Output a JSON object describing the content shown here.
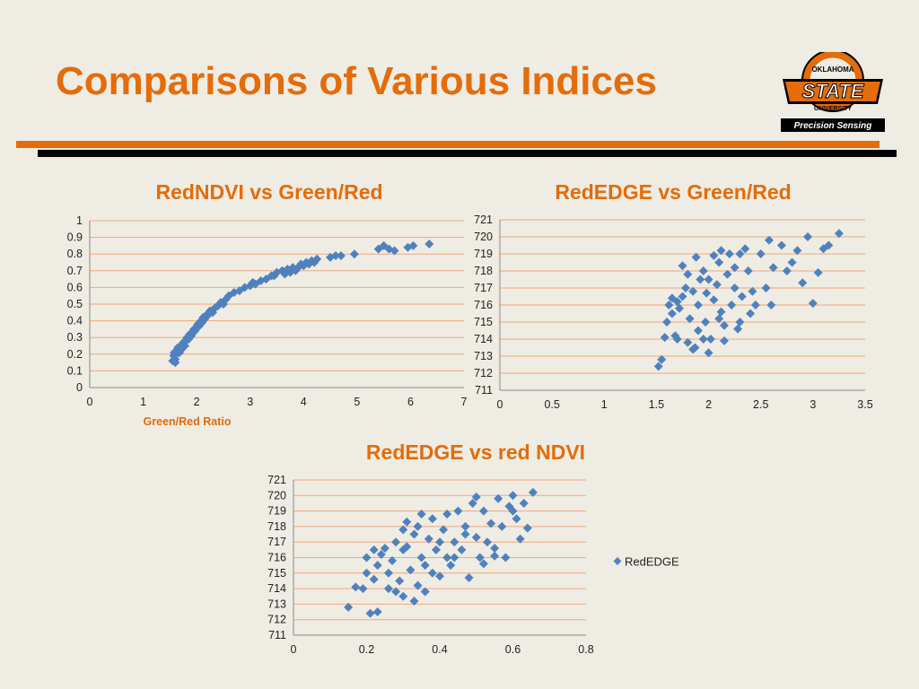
{
  "slide": {
    "title": "Comparisons of Various Indices",
    "accent_color": "#e46c0a",
    "marker_color": "#4f81bd"
  },
  "logo": {
    "top_text": "OKLAHOMA",
    "main_text": "STATE",
    "bottom_text": "UNIVERSITY",
    "tagline": "Precision Sensing",
    "icon": "osu-logo-icon"
  },
  "chart_data": [
    {
      "type": "scatter",
      "title": "RedNDVI  vs Green/Red",
      "xlabel": "Green/Red Ratio",
      "ylabel": "",
      "xlim": [
        0,
        7
      ],
      "ylim": [
        0,
        1
      ],
      "xticks": [
        "0",
        "1",
        "2",
        "3",
        "4",
        "5",
        "6",
        "7"
      ],
      "yticks": [
        "0",
        "0.1",
        "0.2",
        "0.3",
        "0.4",
        "0.5",
        "0.6",
        "0.7",
        "0.8",
        "0.9",
        "1"
      ],
      "grid": true,
      "legend": "none",
      "points": [
        [
          1.55,
          0.16
        ],
        [
          1.57,
          0.19
        ],
        [
          1.58,
          0.21
        ],
        [
          1.6,
          0.17
        ],
        [
          1.62,
          0.2
        ],
        [
          1.63,
          0.22
        ],
        [
          1.65,
          0.24
        ],
        [
          1.68,
          0.21
        ],
        [
          1.7,
          0.25
        ],
        [
          1.72,
          0.23
        ],
        [
          1.75,
          0.27
        ],
        [
          1.78,
          0.25
        ],
        [
          1.8,
          0.28
        ],
        [
          1.82,
          0.3
        ],
        [
          1.85,
          0.29
        ],
        [
          1.87,
          0.32
        ],
        [
          1.9,
          0.31
        ],
        [
          1.92,
          0.33
        ],
        [
          1.95,
          0.35
        ],
        [
          1.97,
          0.34
        ],
        [
          2.0,
          0.36
        ],
        [
          2.02,
          0.38
        ],
        [
          2.05,
          0.37
        ],
        [
          2.08,
          0.4
        ],
        [
          2.1,
          0.39
        ],
        [
          2.12,
          0.42
        ],
        [
          2.15,
          0.41
        ],
        [
          2.18,
          0.43
        ],
        [
          2.2,
          0.44
        ],
        [
          2.25,
          0.46
        ],
        [
          2.3,
          0.45
        ],
        [
          2.35,
          0.48
        ],
        [
          2.4,
          0.49
        ],
        [
          2.45,
          0.51
        ],
        [
          2.5,
          0.5
        ],
        [
          2.55,
          0.53
        ],
        [
          2.6,
          0.55
        ],
        [
          2.7,
          0.57
        ],
        [
          2.8,
          0.58
        ],
        [
          2.9,
          0.6
        ],
        [
          3.0,
          0.61
        ],
        [
          3.05,
          0.63
        ],
        [
          3.1,
          0.62
        ],
        [
          3.2,
          0.64
        ],
        [
          3.3,
          0.65
        ],
        [
          3.4,
          0.67
        ],
        [
          3.5,
          0.69
        ],
        [
          3.6,
          0.7
        ],
        [
          3.65,
          0.68
        ],
        [
          3.7,
          0.71
        ],
        [
          3.75,
          0.69
        ],
        [
          3.8,
          0.72
        ],
        [
          3.85,
          0.7
        ],
        [
          3.9,
          0.72
        ],
        [
          3.95,
          0.74
        ],
        [
          4.0,
          0.73
        ],
        [
          4.05,
          0.75
        ],
        [
          4.1,
          0.74
        ],
        [
          4.15,
          0.76
        ],
        [
          4.2,
          0.75
        ],
        [
          4.25,
          0.77
        ],
        [
          4.5,
          0.78
        ],
        [
          4.6,
          0.79
        ],
        [
          4.7,
          0.79
        ],
        [
          4.95,
          0.8
        ],
        [
          5.4,
          0.83
        ],
        [
          5.5,
          0.85
        ],
        [
          5.6,
          0.83
        ],
        [
          5.7,
          0.82
        ],
        [
          5.95,
          0.84
        ],
        [
          6.05,
          0.85
        ],
        [
          6.35,
          0.86
        ],
        [
          1.6,
          0.15
        ],
        [
          2.2,
          0.43
        ],
        [
          3.45,
          0.67
        ]
      ]
    },
    {
      "type": "scatter",
      "title": "RedEDGE vs Green/Red",
      "xlabel": "",
      "ylabel": "",
      "xlim": [
        0,
        3.5
      ],
      "ylim": [
        711,
        721
      ],
      "xticks": [
        "0",
        "0.5",
        "1",
        "1.5",
        "2",
        "2.5",
        "3",
        "3.5"
      ],
      "yticks": [
        "711",
        "712",
        "713",
        "714",
        "715",
        "716",
        "717",
        "718",
        "719",
        "720",
        "721"
      ],
      "grid": true,
      "legend": "none",
      "points": [
        [
          1.52,
          712.4
        ],
        [
          1.55,
          712.8
        ],
        [
          1.58,
          714.1
        ],
        [
          1.6,
          715.0
        ],
        [
          1.62,
          716.0
        ],
        [
          1.65,
          715.5
        ],
        [
          1.68,
          714.2
        ],
        [
          1.7,
          716.2
        ],
        [
          1.72,
          715.8
        ],
        [
          1.75,
          716.5
        ],
        [
          1.78,
          717.0
        ],
        [
          1.8,
          713.8
        ],
        [
          1.82,
          715.2
        ],
        [
          1.85,
          716.8
        ],
        [
          1.87,
          713.5
        ],
        [
          1.9,
          714.5
        ],
        [
          1.92,
          717.5
        ],
        [
          1.95,
          718.0
        ],
        [
          1.97,
          715.0
        ],
        [
          2.0,
          713.2
        ],
        [
          2.02,
          714.0
        ],
        [
          2.05,
          716.3
        ],
        [
          2.08,
          717.2
        ],
        [
          2.1,
          718.5
        ],
        [
          2.12,
          715.6
        ],
        [
          2.15,
          714.8
        ],
        [
          2.18,
          717.8
        ],
        [
          2.2,
          719.0
        ],
        [
          2.22,
          716.0
        ],
        [
          2.25,
          718.2
        ],
        [
          2.28,
          714.6
        ],
        [
          2.3,
          715.0
        ],
        [
          2.32,
          716.5
        ],
        [
          2.35,
          719.3
        ],
        [
          2.38,
          718.0
        ],
        [
          2.4,
          715.5
        ],
        [
          2.45,
          716.0
        ],
        [
          2.5,
          719.0
        ],
        [
          2.55,
          717.0
        ],
        [
          2.58,
          719.8
        ],
        [
          2.6,
          716.0
        ],
        [
          2.62,
          718.2
        ],
        [
          2.7,
          719.5
        ],
        [
          2.75,
          718.0
        ],
        [
          2.8,
          718.5
        ],
        [
          2.85,
          719.2
        ],
        [
          2.9,
          717.3
        ],
        [
          2.95,
          720.0
        ],
        [
          3.0,
          716.1
        ],
        [
          3.05,
          717.9
        ],
        [
          3.1,
          719.3
        ],
        [
          3.15,
          719.5
        ],
        [
          3.25,
          720.2
        ],
        [
          1.88,
          718.8
        ],
        [
          1.95,
          714.0
        ],
        [
          2.05,
          718.9
        ],
        [
          2.15,
          713.9
        ],
        [
          1.85,
          713.4
        ],
        [
          2.0,
          717.5
        ],
        [
          1.7,
          714.0
        ],
        [
          1.9,
          716.0
        ],
        [
          2.1,
          715.2
        ],
        [
          1.8,
          717.8
        ],
        [
          2.25,
          717.0
        ],
        [
          2.42,
          716.8
        ],
        [
          1.98,
          716.7
        ],
        [
          2.3,
          719.0
        ],
        [
          1.75,
          718.3
        ],
        [
          1.65,
          716.4
        ],
        [
          2.12,
          719.2
        ]
      ]
    },
    {
      "type": "scatter",
      "title": "RedEDGE vs red NDVI",
      "xlabel": "",
      "ylabel": "",
      "xlim": [
        0,
        0.8
      ],
      "ylim": [
        711,
        721
      ],
      "xticks": [
        "0",
        "0.2",
        "0.4",
        "0.6",
        "0.8"
      ],
      "yticks": [
        "711",
        "712",
        "713",
        "714",
        "715",
        "716",
        "717",
        "718",
        "719",
        "720",
        "721"
      ],
      "grid": true,
      "legend": "right",
      "series_name": "RedEDGE",
      "points": [
        [
          0.15,
          712.8
        ],
        [
          0.17,
          714.1
        ],
        [
          0.19,
          714.0
        ],
        [
          0.2,
          715.0
        ],
        [
          0.2,
          716.0
        ],
        [
          0.21,
          712.4
        ],
        [
          0.22,
          714.6
        ],
        [
          0.23,
          712.5
        ],
        [
          0.23,
          715.5
        ],
        [
          0.24,
          716.2
        ],
        [
          0.25,
          716.6
        ],
        [
          0.26,
          714.0
        ],
        [
          0.27,
          715.8
        ],
        [
          0.28,
          717.0
        ],
        [
          0.29,
          714.5
        ],
        [
          0.3,
          716.5
        ],
        [
          0.3,
          713.5
        ],
        [
          0.31,
          718.3
        ],
        [
          0.32,
          715.2
        ],
        [
          0.33,
          717.5
        ],
        [
          0.34,
          714.2
        ],
        [
          0.35,
          716.0
        ],
        [
          0.35,
          718.8
        ],
        [
          0.36,
          713.8
        ],
        [
          0.37,
          717.2
        ],
        [
          0.38,
          715.0
        ],
        [
          0.38,
          718.5
        ],
        [
          0.39,
          716.5
        ],
        [
          0.4,
          714.8
        ],
        [
          0.41,
          717.8
        ],
        [
          0.42,
          716.0
        ],
        [
          0.42,
          718.8
        ],
        [
          0.43,
          715.5
        ],
        [
          0.44,
          717.0
        ],
        [
          0.45,
          719.0
        ],
        [
          0.46,
          716.5
        ],
        [
          0.47,
          718.0
        ],
        [
          0.48,
          714.7
        ],
        [
          0.49,
          719.5
        ],
        [
          0.5,
          717.3
        ],
        [
          0.51,
          716.0
        ],
        [
          0.52,
          719.0
        ],
        [
          0.53,
          717.0
        ],
        [
          0.54,
          718.2
        ],
        [
          0.55,
          716.1
        ],
        [
          0.56,
          719.8
        ],
        [
          0.57,
          718.0
        ],
        [
          0.58,
          716.0
        ],
        [
          0.59,
          719.3
        ],
        [
          0.6,
          720.0
        ],
        [
          0.61,
          718.5
        ],
        [
          0.62,
          717.2
        ],
        [
          0.63,
          719.5
        ],
        [
          0.64,
          717.9
        ],
        [
          0.655,
          720.2
        ],
        [
          0.33,
          713.2
        ],
        [
          0.36,
          715.5
        ],
        [
          0.28,
          713.8
        ],
        [
          0.44,
          716.0
        ],
        [
          0.5,
          719.9
        ],
        [
          0.4,
          717.0
        ],
        [
          0.47,
          717.5
        ],
        [
          0.26,
          715.0
        ],
        [
          0.34,
          718.0
        ],
        [
          0.55,
          716.6
        ],
        [
          0.31,
          716.7
        ],
        [
          0.6,
          719.0
        ],
        [
          0.22,
          716.5
        ],
        [
          0.3,
          717.8
        ],
        [
          0.52,
          715.6
        ]
      ]
    }
  ]
}
